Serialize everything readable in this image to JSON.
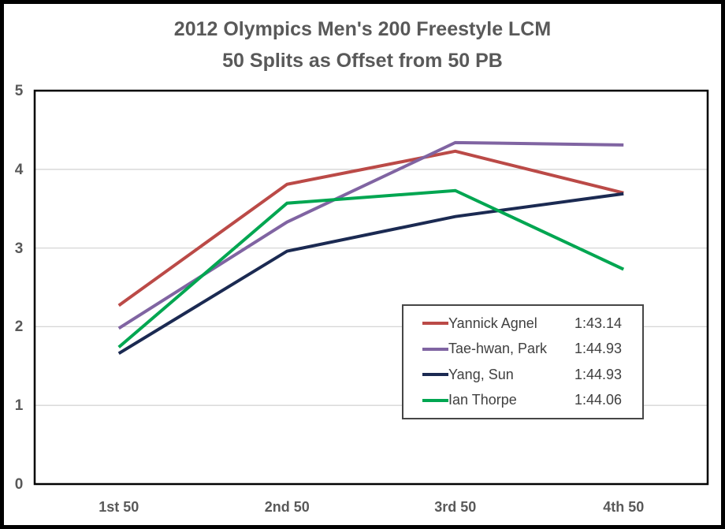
{
  "title": {
    "line1": "2012 Olympics Men's 200 Freestyle LCM",
    "line2": "50 Splits as Offset from 50 PB"
  },
  "colors": {
    "plot_border": "#000000",
    "gridline": "#d6d6d6",
    "title_text": "#595959",
    "axis_text": "#595959",
    "legend_text": "#404040"
  },
  "chart_data": {
    "type": "line",
    "categories": [
      "1st 50",
      "2nd 50",
      "3rd 50",
      "4th 50"
    ],
    "y_ticks": [
      5,
      4,
      3,
      2,
      1,
      0
    ],
    "ylim": [
      0,
      5
    ],
    "grid": "horizontal",
    "legend_position": "inside-right",
    "title": "2012 Olympics Men's 200 Freestyle LCM 50 Splits as Offset from 50 PB",
    "xlabel": "",
    "ylabel": "",
    "series": [
      {
        "name": "Yannick Agnel",
        "time": "1:43.14",
        "color": "#bb4a47",
        "values": [
          2.27,
          3.81,
          4.23,
          3.7
        ]
      },
      {
        "name": "Tae-hwan, Park",
        "time": "1:44.93",
        "color": "#8064a2",
        "values": [
          1.98,
          3.33,
          4.34,
          4.31
        ]
      },
      {
        "name": "Yang, Sun",
        "time": "1:44.93",
        "color": "#1b2a52",
        "values": [
          1.66,
          2.96,
          3.4,
          3.69
        ]
      },
      {
        "name": "Ian Thorpe",
        "time": "1:44.06",
        "color": "#00a651",
        "values": [
          1.74,
          3.57,
          3.73,
          2.73
        ]
      }
    ]
  }
}
